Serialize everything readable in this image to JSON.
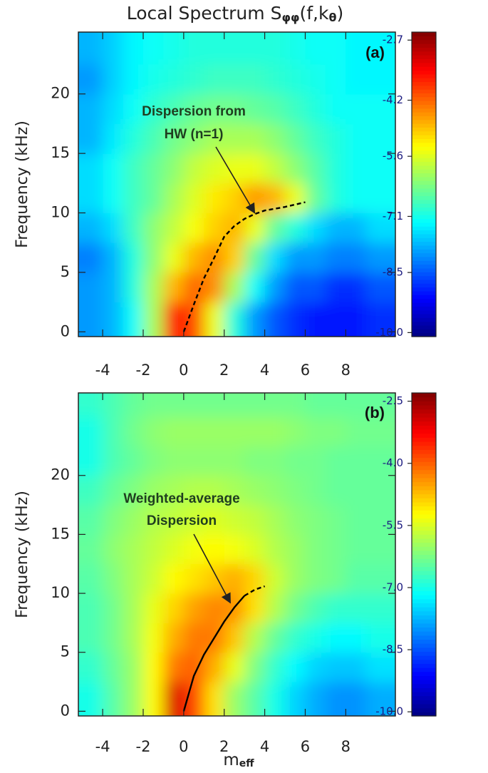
{
  "chart_data": [
    {
      "type": "heatmap",
      "title": [
        {
          "text": "Local Spectrum S"
        },
        {
          "text": "φφ",
          "sub": true
        },
        {
          "text": "(f,k"
        },
        {
          "text": "θ",
          "sub": true
        },
        {
          "text": ")"
        }
      ],
      "ylabel": "Frequency (kHz)",
      "panel_label": "(a)",
      "xlim": [
        -5.2,
        10.45
      ],
      "xticks": [
        -4,
        -2,
        0,
        2,
        4,
        6,
        8
      ],
      "ylim": [
        -0.4,
        25.2
      ],
      "yticks": [
        0,
        5,
        10,
        15,
        20
      ],
      "colormap": "jet",
      "clim": [
        -10.1,
        -2.5
      ],
      "cticks": [
        {
          "value": -10.0,
          "label": "-10.0"
        },
        -8.5,
        -7.1,
        -5.6,
        -4.2,
        -2.7
      ],
      "x": [
        -4.5,
        -3.5,
        -2.5,
        -1.5,
        -0.5,
        0.5,
        1.5,
        2.5,
        3.5,
        4.5,
        5.5,
        6.5,
        7.5,
        8.5,
        9.5
      ],
      "y": [
        1.25,
        3.75,
        6.25,
        8.75,
        11.25,
        13.75,
        16.25,
        18.75,
        21.25,
        23.75
      ],
      "z": [
        [
          -8.0,
          -7.8,
          -7.2,
          -6.0,
          -3.5,
          -4.0,
          -5.5,
          -7.0,
          -8.0,
          -8.5,
          -8.8,
          -9.0,
          -9.0,
          -9.0,
          -8.8
        ],
        [
          -8.0,
          -7.8,
          -7.0,
          -6.0,
          -4.8,
          -4.2,
          -4.5,
          -6.0,
          -7.2,
          -8.0,
          -8.5,
          -8.5,
          -8.8,
          -8.8,
          -8.5
        ],
        [
          -8.2,
          -7.8,
          -7.0,
          -6.2,
          -5.5,
          -4.8,
          -4.5,
          -5.0,
          -6.5,
          -7.5,
          -8.0,
          -8.0,
          -8.2,
          -8.2,
          -8.0
        ],
        [
          -7.8,
          -7.5,
          -6.8,
          -6.2,
          -5.8,
          -5.4,
          -5.0,
          -4.8,
          -5.5,
          -6.5,
          -7.0,
          -7.5,
          -7.8,
          -7.8,
          -7.5
        ],
        [
          -7.5,
          -7.2,
          -6.8,
          -6.5,
          -6.0,
          -5.6,
          -5.2,
          -5.0,
          -4.6,
          -4.8,
          -5.5,
          -6.5,
          -7.0,
          -7.2,
          -7.2
        ],
        [
          -7.5,
          -7.2,
          -6.8,
          -6.5,
          -6.2,
          -5.8,
          -5.6,
          -5.5,
          -5.5,
          -5.8,
          -6.2,
          -6.6,
          -7.0,
          -7.2,
          -7.2
        ],
        [
          -7.8,
          -7.4,
          -7.0,
          -6.7,
          -6.4,
          -6.2,
          -6.0,
          -6.0,
          -6.0,
          -6.2,
          -6.5,
          -6.8,
          -7.0,
          -7.2,
          -7.2
        ],
        [
          -7.8,
          -7.5,
          -7.2,
          -6.9,
          -6.7,
          -6.5,
          -6.4,
          -6.4,
          -6.5,
          -6.6,
          -6.8,
          -7.0,
          -7.2,
          -7.2,
          -7.2
        ],
        [
          -8.0,
          -7.6,
          -7.3,
          -7.1,
          -7.0,
          -6.9,
          -6.8,
          -6.8,
          -6.8,
          -6.9,
          -7.0,
          -7.1,
          -7.2,
          -7.3,
          -7.3
        ],
        [
          -7.8,
          -7.6,
          -7.3,
          -7.2,
          -7.1,
          -7.0,
          -7.0,
          -7.0,
          -7.0,
          -7.0,
          -7.1,
          -7.2,
          -7.2,
          -7.3,
          -7.3
        ]
      ],
      "series": [
        {
          "color": "#000000",
          "dash": true,
          "x": [
            0,
            0.5,
            1,
            1.5,
            2,
            2.5,
            3,
            3.5,
            4,
            5,
            6
          ],
          "values": [
            0,
            2.3,
            4.5,
            6.2,
            8,
            8.9,
            9.5,
            9.9,
            10.2,
            10.5,
            10.9
          ]
        }
      ],
      "annotations": [
        {
          "text": [
            "Dispersion from",
            "HW (n=1)"
          ],
          "xy": [
            3.5,
            10.0
          ],
          "color": "#1f3d1f"
        }
      ]
    },
    {
      "type": "heatmap",
      "ylabel": "Frequency (kHz)",
      "xlabel": [
        {
          "text": "m"
        },
        {
          "text": "eff",
          "sub": true
        }
      ],
      "panel_label": "(b)",
      "xlim": [
        -5.2,
        10.45
      ],
      "xticks": [
        -4,
        -2,
        0,
        2,
        4,
        6,
        8
      ],
      "ylim": [
        -0.4,
        27.0
      ],
      "yticks": [
        0,
        5,
        10,
        15,
        20
      ],
      "colormap": "jet",
      "clim": [
        -10.1,
        -2.3
      ],
      "cticks": [
        {
          "value": -10.0,
          "label": "-10.0"
        },
        -8.5,
        {
          "value": -7.0,
          "label": "-7.0"
        },
        -5.5,
        {
          "value": -4.0,
          "label": "-4.0"
        },
        -2.5
      ],
      "x": [
        -4.5,
        -3.5,
        -2.5,
        -1.5,
        -0.5,
        0.5,
        1.5,
        2.5,
        3.5,
        4.5,
        5.5,
        6.5,
        7.5,
        8.5,
        9.5
      ],
      "y": [
        1.25,
        3.75,
        6.25,
        8.75,
        11.25,
        13.75,
        16.25,
        18.75,
        21.25,
        23.75,
        26.25
      ],
      "z": [
        [
          -7.0,
          -6.5,
          -6.0,
          -5.2,
          -3.0,
          -3.8,
          -5.0,
          -6.0,
          -6.5,
          -7.0,
          -7.5,
          -7.8,
          -8.0,
          -8.0,
          -7.8
        ],
        [
          -6.8,
          -6.4,
          -6.0,
          -5.2,
          -4.2,
          -4.0,
          -4.6,
          -5.4,
          -6.2,
          -6.8,
          -7.2,
          -7.5,
          -7.6,
          -7.6,
          -7.4
        ],
        [
          -6.6,
          -6.3,
          -5.9,
          -5.3,
          -4.6,
          -4.2,
          -4.2,
          -4.8,
          -5.8,
          -6.4,
          -6.8,
          -7.0,
          -7.2,
          -7.2,
          -7.0
        ],
        [
          -6.6,
          -6.3,
          -5.9,
          -5.4,
          -4.9,
          -4.5,
          -4.3,
          -4.4,
          -5.0,
          -5.8,
          -6.3,
          -6.6,
          -6.8,
          -6.8,
          -6.8
        ],
        [
          -6.5,
          -6.2,
          -5.9,
          -5.6,
          -5.2,
          -5.0,
          -4.8,
          -4.6,
          -4.9,
          -5.6,
          -6.0,
          -6.2,
          -6.3,
          -6.5,
          -6.5
        ],
        [
          -6.4,
          -6.1,
          -5.9,
          -5.7,
          -5.5,
          -5.3,
          -5.2,
          -5.3,
          -5.5,
          -5.8,
          -6.0,
          -6.2,
          -6.3,
          -6.4,
          -6.4
        ],
        [
          -6.5,
          -6.2,
          -6.0,
          -5.8,
          -5.7,
          -5.6,
          -5.5,
          -5.6,
          -5.7,
          -5.9,
          -6.1,
          -6.2,
          -6.3,
          -6.4,
          -6.4
        ],
        [
          -6.7,
          -6.4,
          -6.2,
          -6.0,
          -5.9,
          -5.8,
          -5.8,
          -5.9,
          -6.0,
          -6.1,
          -6.2,
          -6.3,
          -6.4,
          -6.4,
          -6.4
        ],
        [
          -7.0,
          -6.6,
          -6.4,
          -6.2,
          -6.1,
          -6.1,
          -6.1,
          -6.1,
          -6.2,
          -6.2,
          -6.3,
          -6.3,
          -6.4,
          -6.4,
          -6.4
        ],
        [
          -7.0,
          -6.6,
          -6.3,
          -6.1,
          -6.0,
          -6.0,
          -6.0,
          -6.0,
          -6.0,
          -6.0,
          -6.1,
          -6.2,
          -6.2,
          -6.3,
          -6.3
        ],
        [
          -6.8,
          -6.6,
          -6.4,
          -6.3,
          -6.3,
          -6.3,
          -6.3,
          -6.3,
          -6.3,
          -6.3,
          -6.3,
          -6.4,
          -6.4,
          -6.4,
          -6.4
        ]
      ],
      "series": [
        {
          "color": "#000000",
          "dash": false,
          "x": [
            0,
            0.5,
            1,
            1.5,
            2,
            2.5,
            3
          ],
          "values": [
            0,
            3.0,
            4.8,
            6.2,
            7.6,
            8.8,
            9.8
          ]
        },
        {
          "color": "#000000",
          "dash": true,
          "x": [
            3,
            3.5,
            4
          ],
          "values": [
            9.8,
            10.3,
            10.6
          ]
        }
      ],
      "annotations": [
        {
          "text": [
            "Weighted-average",
            "Dispersion"
          ],
          "xy": [
            2.3,
            9.2
          ],
          "color": "#1f3d1f"
        }
      ]
    }
  ]
}
